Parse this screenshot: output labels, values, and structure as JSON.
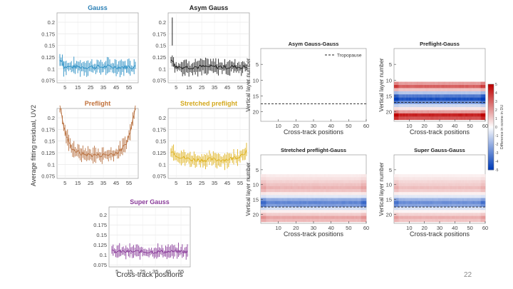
{
  "page_number": "22",
  "shared": {
    "left_ylabel": "Average fitting residual, UV2",
    "left_xlabel": "Cross-track positions",
    "right_xlabel": "Cross-track positions",
    "right_ylabel": "Vertical layer number",
    "colorbar_label": "Difference in ozone in DU",
    "colorbar_ticks": [
      "5",
      "4",
      "3",
      "2",
      "1",
      "0",
      "-1",
      "-2",
      "-3",
      "-4",
      "-5"
    ]
  },
  "chart_data": [
    {
      "id": "gauss",
      "type": "line",
      "title": "Gauss",
      "title_color": "#2a7fb5",
      "series_color": "#2a8fc5",
      "x_ticks": [
        "5",
        "15",
        "25",
        "35",
        "45",
        "55"
      ],
      "y_ticks": [
        "0.2",
        "0.175",
        "0.15",
        "0.125",
        "0.1",
        "0.075"
      ],
      "ylim": [
        0.07,
        0.22
      ],
      "baseline": 0.104,
      "trend": "flat"
    },
    {
      "id": "asym",
      "type": "line",
      "title": "Asym Gauss",
      "title_color": "#222222",
      "series_color": "#222222",
      "x_ticks": [
        "5",
        "15",
        "25",
        "35",
        "45",
        "55"
      ],
      "y_ticks": [
        "0.2",
        "0.175",
        "0.15",
        "0.125",
        "0.1",
        "0.075"
      ],
      "ylim": [
        0.07,
        0.22
      ],
      "baseline": 0.104,
      "trend": "flat"
    },
    {
      "id": "preflight",
      "type": "line",
      "title": "Preflight",
      "title_color": "#c0703a",
      "series_color": "#b8703f",
      "x_ticks": [
        "5",
        "15",
        "25",
        "35",
        "45",
        "55"
      ],
      "y_ticks": [
        "0.2",
        "0.175",
        "0.15",
        "0.125",
        "0.1",
        "0.075"
      ],
      "ylim": [
        0.07,
        0.22
      ],
      "baseline": 0.12,
      "trend": "u"
    },
    {
      "id": "stretched",
      "type": "line",
      "title": "Stretched preflight",
      "title_color": "#d4a81c",
      "series_color": "#dfb320",
      "x_ticks": [
        "5",
        "15",
        "25",
        "35",
        "45",
        "55"
      ],
      "y_ticks": [
        "0.2",
        "0.175",
        "0.15",
        "0.125",
        "0.1",
        "0.075"
      ],
      "ylim": [
        0.07,
        0.22
      ],
      "baseline": 0.112,
      "trend": "shallow"
    },
    {
      "id": "super",
      "type": "line",
      "title": "Super Gauss",
      "title_color": "#8a3c9a",
      "series_color": "#8a3c9a",
      "x_ticks": [
        "5",
        "15",
        "25",
        "35",
        "45",
        "55"
      ],
      "y_ticks": [
        "0.2",
        "0.175",
        "0.15",
        "0.125",
        "0.1",
        "0.075"
      ],
      "ylim": [
        0.07,
        0.22
      ],
      "baseline": 0.108,
      "trend": "flat"
    },
    {
      "id": "hm_asym",
      "type": "heatmap",
      "title": "Asym Gauss-Gauss",
      "legend": "Tropopause",
      "x_ticks": [
        "10",
        "20",
        "30",
        "40",
        "50",
        "60"
      ],
      "y_ticks": [
        "5",
        "10",
        "15",
        "20"
      ],
      "xlim": [
        0,
        60
      ],
      "ylim": [
        0,
        23
      ],
      "tropopause": 17.5,
      "bands": []
    },
    {
      "id": "hm_preflight",
      "type": "heatmap",
      "title": "Preflight-Gauss",
      "x_ticks": [
        "10",
        "20",
        "30",
        "40",
        "50",
        "60"
      ],
      "y_ticks": [
        "5",
        "10",
        "15",
        "20"
      ],
      "xlim": [
        0,
        60
      ],
      "ylim": [
        0,
        23
      ],
      "tropopause": 17,
      "bands": [
        {
          "layer": 11,
          "value": 2.0
        },
        {
          "layer": 12,
          "value": 3.2
        },
        {
          "layer": 13,
          "value": 1.2
        },
        {
          "layer": 14,
          "value": -1.5
        },
        {
          "layer": 15,
          "value": -3.5
        },
        {
          "layer": 16,
          "value": -4.6
        },
        {
          "layer": 17,
          "value": -3.0
        },
        {
          "layer": 18,
          "value": -1.0
        },
        {
          "layer": 19,
          "value": 0.5
        },
        {
          "layer": 20,
          "value": 2.0
        },
        {
          "layer": 21,
          "value": 4.5
        },
        {
          "layer": 22,
          "value": 3.5
        }
      ]
    },
    {
      "id": "hm_stretched",
      "type": "heatmap",
      "title": "Stretched preflight-Gauss",
      "x_ticks": [
        "10",
        "20",
        "30",
        "40",
        "50",
        "60"
      ],
      "y_ticks": [
        "5",
        "10",
        "15",
        "20"
      ],
      "xlim": [
        0,
        60
      ],
      "ylim": [
        0,
        23
      ],
      "tropopause": 17.5,
      "bands": [
        {
          "layer": 7,
          "value": 0.4
        },
        {
          "layer": 8,
          "value": 0.6
        },
        {
          "layer": 9,
          "value": 0.9
        },
        {
          "layer": 10,
          "value": 1.2
        },
        {
          "layer": 11,
          "value": 1.5
        },
        {
          "layer": 12,
          "value": 1.2
        },
        {
          "layer": 13,
          "value": 0.4
        },
        {
          "layer": 14,
          "value": -0.6
        },
        {
          "layer": 15,
          "value": -2.2
        },
        {
          "layer": 16,
          "value": -3.2
        },
        {
          "layer": 17,
          "value": -2.6
        },
        {
          "layer": 18,
          "value": -0.8
        },
        {
          "layer": 19,
          "value": 0.3
        },
        {
          "layer": 20,
          "value": 1.0
        },
        {
          "layer": 21,
          "value": 1.8
        },
        {
          "layer": 22,
          "value": 1.4
        }
      ]
    },
    {
      "id": "hm_super",
      "type": "heatmap",
      "title": "Super Gauss-Gauss",
      "x_ticks": [
        "10",
        "20",
        "30",
        "40",
        "50",
        "60"
      ],
      "y_ticks": [
        "5",
        "10",
        "15",
        "20"
      ],
      "xlim": [
        0,
        60
      ],
      "ylim": [
        0,
        23
      ],
      "tropopause": 17.5,
      "bands": [
        {
          "layer": 7,
          "value": 0.3
        },
        {
          "layer": 8,
          "value": 0.5
        },
        {
          "layer": 9,
          "value": 0.8
        },
        {
          "layer": 10,
          "value": 1.0
        },
        {
          "layer": 11,
          "value": 1.3
        },
        {
          "layer": 12,
          "value": 1.0
        },
        {
          "layer": 13,
          "value": 0.3
        },
        {
          "layer": 14,
          "value": -0.6
        },
        {
          "layer": 15,
          "value": -2.0
        },
        {
          "layer": 16,
          "value": -3.0
        },
        {
          "layer": 17,
          "value": -2.4
        },
        {
          "layer": 18,
          "value": -0.7
        },
        {
          "layer": 19,
          "value": 0.2
        },
        {
          "layer": 20,
          "value": 0.9
        },
        {
          "layer": 21,
          "value": 1.6
        },
        {
          "layer": 22,
          "value": 1.2
        }
      ]
    }
  ]
}
